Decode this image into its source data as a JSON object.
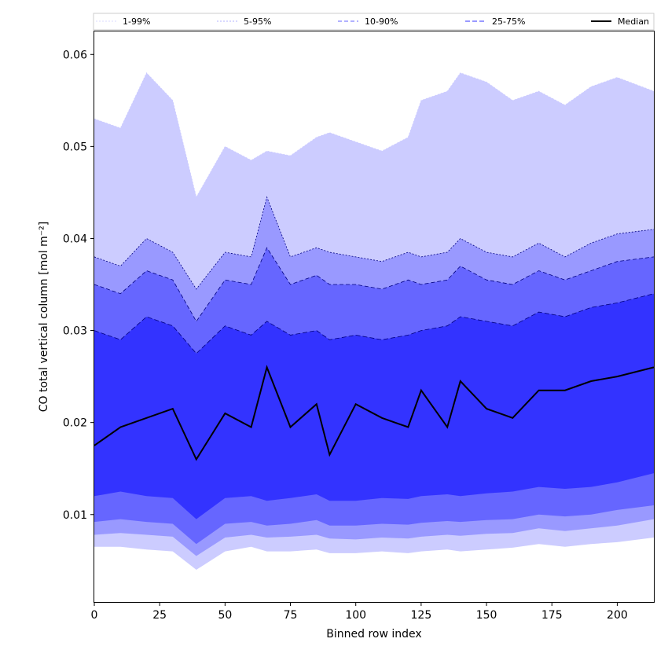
{
  "chart_data": {
    "type": "area",
    "xlabel": "Binned row index",
    "ylabel": "CO total vertical column [mol m⁻²]",
    "xlim": [
      0,
      214
    ],
    "ylim": [
      0.0005,
      0.0625
    ],
    "x_ticks": [
      "0",
      "25",
      "50",
      "75",
      "100",
      "125",
      "150",
      "175",
      "200"
    ],
    "y_ticks": [
      "0.01",
      "0.02",
      "0.03",
      "0.04",
      "0.05",
      "0.06"
    ],
    "legend_placement": "top",
    "grid": false,
    "x": [
      0,
      10,
      20,
      30,
      39,
      50,
      60,
      66,
      75,
      85,
      90,
      100,
      110,
      120,
      125,
      135,
      140,
      150,
      160,
      170,
      180,
      190,
      200,
      214
    ],
    "series": [
      {
        "name": "1-99%",
        "lower": [
          0.0065,
          0.0065,
          0.0062,
          0.006,
          0.004,
          0.006,
          0.0065,
          0.006,
          0.006,
          0.0062,
          0.0058,
          0.0058,
          0.006,
          0.0058,
          0.006,
          0.0062,
          0.006,
          0.0062,
          0.0064,
          0.0068,
          0.0065,
          0.0068,
          0.007,
          0.0075
        ],
        "upper": [
          0.053,
          0.052,
          0.058,
          0.055,
          0.0445,
          0.05,
          0.0485,
          0.0495,
          0.049,
          0.051,
          0.0515,
          0.0505,
          0.0495,
          0.051,
          0.055,
          0.056,
          0.058,
          0.057,
          0.055,
          0.056,
          0.0545,
          0.0565,
          0.0575,
          0.056
        ]
      },
      {
        "name": "5-95%",
        "lower": [
          0.0078,
          0.008,
          0.0078,
          0.0076,
          0.0055,
          0.0075,
          0.0078,
          0.0075,
          0.0076,
          0.0078,
          0.0074,
          0.0073,
          0.0075,
          0.0074,
          0.0076,
          0.0078,
          0.0077,
          0.0079,
          0.008,
          0.0085,
          0.0082,
          0.0085,
          0.0088,
          0.0095
        ],
        "upper": [
          0.038,
          0.037,
          0.04,
          0.0385,
          0.0345,
          0.0385,
          0.038,
          0.0445,
          0.038,
          0.039,
          0.0385,
          0.038,
          0.0375,
          0.0385,
          0.038,
          0.0385,
          0.04,
          0.0385,
          0.038,
          0.0395,
          0.038,
          0.0395,
          0.0405,
          0.041
        ]
      },
      {
        "name": "10-90%",
        "lower": [
          0.0092,
          0.0095,
          0.0092,
          0.009,
          0.0068,
          0.009,
          0.0092,
          0.0088,
          0.009,
          0.0094,
          0.0088,
          0.0088,
          0.009,
          0.0089,
          0.0091,
          0.0093,
          0.0092,
          0.0094,
          0.0095,
          0.01,
          0.0098,
          0.01,
          0.0105,
          0.011
        ],
        "upper": [
          0.035,
          0.034,
          0.0365,
          0.0355,
          0.031,
          0.0355,
          0.035,
          0.039,
          0.035,
          0.036,
          0.035,
          0.035,
          0.0345,
          0.0355,
          0.035,
          0.0355,
          0.037,
          0.0355,
          0.035,
          0.0365,
          0.0355,
          0.0365,
          0.0375,
          0.038
        ]
      },
      {
        "name": "25-75%",
        "lower": [
          0.012,
          0.0125,
          0.012,
          0.0118,
          0.0095,
          0.0118,
          0.012,
          0.0115,
          0.0118,
          0.0122,
          0.0115,
          0.0115,
          0.0118,
          0.0117,
          0.012,
          0.0122,
          0.012,
          0.0123,
          0.0125,
          0.013,
          0.0128,
          0.013,
          0.0135,
          0.0145
        ],
        "upper": [
          0.03,
          0.029,
          0.0315,
          0.0305,
          0.0275,
          0.0305,
          0.0295,
          0.031,
          0.0295,
          0.03,
          0.029,
          0.0295,
          0.029,
          0.0295,
          0.03,
          0.0305,
          0.0315,
          0.031,
          0.0305,
          0.032,
          0.0315,
          0.0325,
          0.033,
          0.034
        ]
      },
      {
        "name": "Median",
        "values": [
          0.0175,
          0.0195,
          0.0205,
          0.0215,
          0.016,
          0.021,
          0.0195,
          0.026,
          0.0195,
          0.022,
          0.0165,
          0.022,
          0.0205,
          0.0195,
          0.0235,
          0.0195,
          0.0245,
          0.0215,
          0.0205,
          0.0235,
          0.0235,
          0.0245,
          0.025,
          0.026
        ]
      }
    ],
    "colors": {
      "band_1_99": "#ccccff",
      "band_5_95": "#9999ff",
      "band_10_90": "#6666ff",
      "band_25_75": "#3333ff",
      "median": "#000000"
    }
  }
}
